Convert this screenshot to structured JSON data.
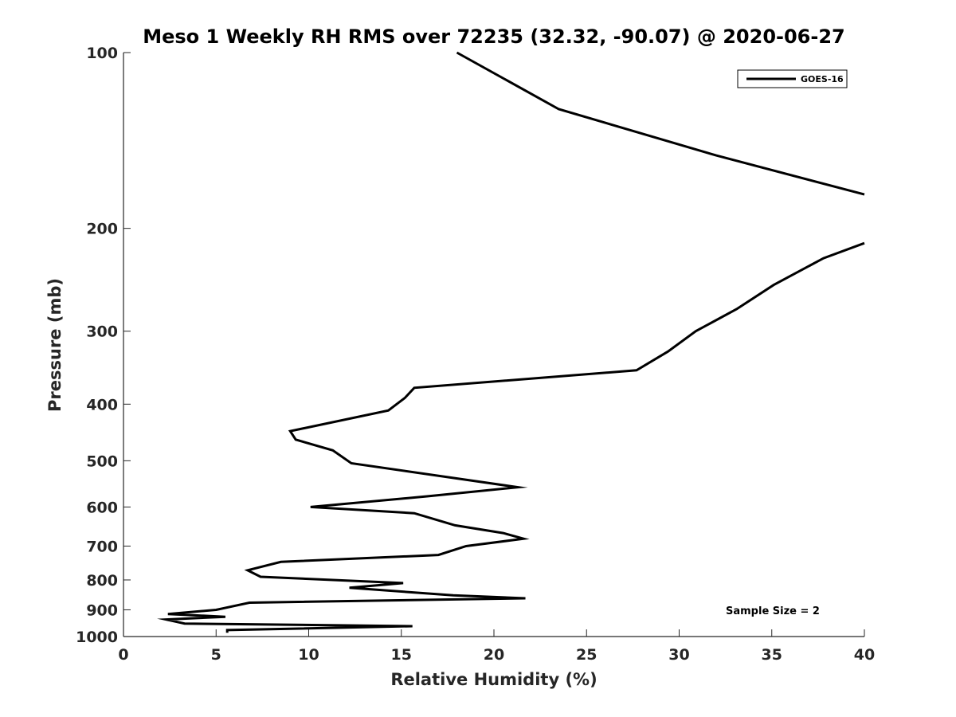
{
  "chart_data": {
    "type": "line",
    "title": "Meso 1 Weekly RH RMS over 72235 (32.32, -90.07) @ 2020-06-27",
    "xlabel": "Relative Humidity (%)",
    "ylabel": "Pressure (mb)",
    "xlim": [
      0,
      40
    ],
    "ylim": [
      100,
      1000
    ],
    "yscale": "log",
    "y_reversed": true,
    "grid": false,
    "legend_position": "top-right",
    "xticks": [
      0,
      5,
      10,
      15,
      20,
      25,
      30,
      35,
      40
    ],
    "xtick_labels": [
      "0",
      "5",
      "10",
      "15",
      "20",
      "25",
      "30",
      "35",
      "40"
    ],
    "yticks": [
      100,
      200,
      300,
      400,
      500,
      600,
      700,
      800,
      900,
      1000
    ],
    "ytick_labels": [
      "100",
      "200",
      "300",
      "400",
      "500",
      "600",
      "700",
      "800",
      "900",
      "1000"
    ],
    "annotation": "Sample Size = 2",
    "series": [
      {
        "name": "GOES-16",
        "color": "#000000",
        "segments": [
          [
            {
              "x": 18.0,
              "y": 100
            },
            {
              "x": 23.5,
              "y": 125
            },
            {
              "x": 32.0,
              "y": 150
            },
            {
              "x": 40.0,
              "y": 175
            }
          ],
          [
            {
              "x": 40.0,
              "y": 212
            },
            {
              "x": 37.8,
              "y": 225
            },
            {
              "x": 35.1,
              "y": 250
            },
            {
              "x": 33.1,
              "y": 275
            },
            {
              "x": 30.9,
              "y": 300
            },
            {
              "x": 29.4,
              "y": 325
            },
            {
              "x": 27.7,
              "y": 350
            },
            {
              "x": 15.7,
              "y": 375
            },
            {
              "x": 15.2,
              "y": 390
            },
            {
              "x": 14.3,
              "y": 410
            },
            {
              "x": 9.0,
              "y": 445
            },
            {
              "x": 9.3,
              "y": 460
            },
            {
              "x": 11.3,
              "y": 480
            },
            {
              "x": 12.3,
              "y": 505
            },
            {
              "x": 21.3,
              "y": 555
            },
            {
              "x": 16.5,
              "y": 575
            },
            {
              "x": 10.1,
              "y": 600
            },
            {
              "x": 15.7,
              "y": 615
            },
            {
              "x": 17.9,
              "y": 645
            },
            {
              "x": 20.5,
              "y": 665
            },
            {
              "x": 21.6,
              "y": 680
            },
            {
              "x": 18.5,
              "y": 700
            },
            {
              "x": 17.0,
              "y": 725
            },
            {
              "x": 8.5,
              "y": 745
            },
            {
              "x": 6.7,
              "y": 770
            },
            {
              "x": 7.4,
              "y": 790
            },
            {
              "x": 15.1,
              "y": 810
            },
            {
              "x": 12.2,
              "y": 825
            },
            {
              "x": 17.8,
              "y": 850
            },
            {
              "x": 21.7,
              "y": 860
            },
            {
              "x": 6.8,
              "y": 875
            },
            {
              "x": 5.0,
              "y": 900
            },
            {
              "x": 2.4,
              "y": 915
            },
            {
              "x": 5.5,
              "y": 925
            },
            {
              "x": 2.3,
              "y": 935
            },
            {
              "x": 3.3,
              "y": 950
            },
            {
              "x": 15.6,
              "y": 960
            },
            {
              "x": 5.6,
              "y": 975
            },
            {
              "x": 5.6,
              "y": 985
            }
          ]
        ]
      }
    ]
  }
}
